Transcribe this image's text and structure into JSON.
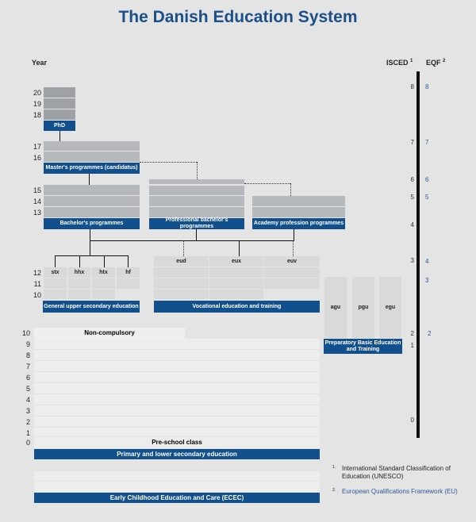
{
  "title": "The Danish Education System",
  "headers": {
    "year": "Year",
    "isced": "ISCED",
    "isced_sup": "1",
    "eqf": "EQF",
    "eqf_sup": "2"
  },
  "years": {
    "y20": "20",
    "y19": "19",
    "y18": "18",
    "y17": "17",
    "y16": "16",
    "y15": "15",
    "y14": "14",
    "y13": "13",
    "y12": "12",
    "y11": "11",
    "y10": "10"
  },
  "school_years": [
    "10",
    "9",
    "8",
    "7",
    "6",
    "5",
    "4",
    "3",
    "2",
    "1",
    "0"
  ],
  "isced_levels": {
    "l8": "8",
    "l7": "7",
    "l6": "6",
    "l5": "5",
    "l4": "4",
    "l3": "3",
    "l2": "2",
    "l1": "1",
    "l0": "0"
  },
  "eqf_levels": {
    "l8": "8",
    "l7": "7",
    "l6": "6",
    "l5": "5",
    "l4": "4",
    "l3": "3",
    "l2": "2"
  },
  "programmes": {
    "phd": "PhD",
    "masters": "Master's programmes (candidatus)",
    "bachelor": "Bachelor's programmes",
    "professional_bachelor": "Professional bachelor's programmes",
    "academy": "Academy profession programmes",
    "general_upper": "General upper secondary education",
    "vocational": "Vocational education and training",
    "preparatory": "Preparatory Basic Education and Training",
    "primary": "Primary and lower secondary education",
    "ecec": "Early Childhood Education and Care (ECEC)",
    "non_compulsory": "Non-compulsory",
    "preschool": "Pre-school class"
  },
  "upper_tracks": [
    "stx",
    "hhx",
    "htx",
    "hf"
  ],
  "vocational_tracks": [
    "eud",
    "eux",
    "euv"
  ],
  "preparatory_tracks": [
    "agu",
    "pgu",
    "egu"
  ],
  "footnotes": [
    {
      "mark": "1.",
      "text": "International Standard Classification of Education (UNESCO)"
    },
    {
      "mark": "2.",
      "text": "European Qualifications Framework (EU)"
    }
  ],
  "colors": {
    "brand_blue": "#114f8d",
    "title": "#1a4f8a",
    "eqf_text": "#2a5c99"
  }
}
